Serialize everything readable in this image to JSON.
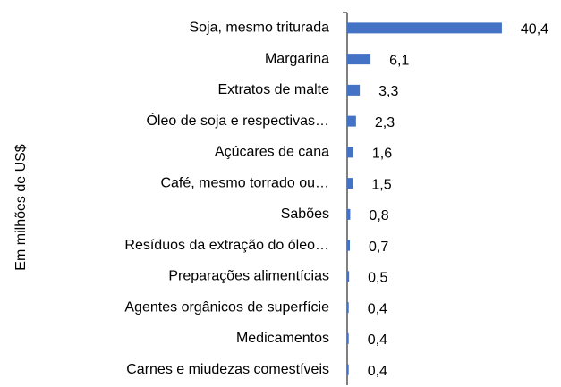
{
  "chart_data": {
    "type": "hbar",
    "axis_label": "Em milhões de US$",
    "categories": [
      "Soja, mesmo triturada",
      "Margarina",
      "Extratos de malte",
      "Óleo de soja e respectivas…",
      "Açúcares de cana",
      "Café, mesmo torrado ou…",
      "Sabões",
      "Resíduos da extração do óleo…",
      "Preparações alimentícias",
      "Agentes orgânicos de superfície",
      "Medicamentos",
      "Carnes e miudezas comestíveis"
    ],
    "values": [
      40.4,
      6.1,
      3.3,
      2.3,
      1.6,
      1.5,
      0.8,
      0.7,
      0.5,
      0.4,
      0.4,
      0.4
    ],
    "value_labels": [
      "40,4",
      "6,1",
      "3,3",
      "2,3",
      "1,6",
      "1,5",
      "0,8",
      "0,7",
      "0,5",
      "0,4",
      "0,4",
      "0,4"
    ],
    "color": "#4472c4",
    "xlim": [
      0,
      50
    ]
  }
}
